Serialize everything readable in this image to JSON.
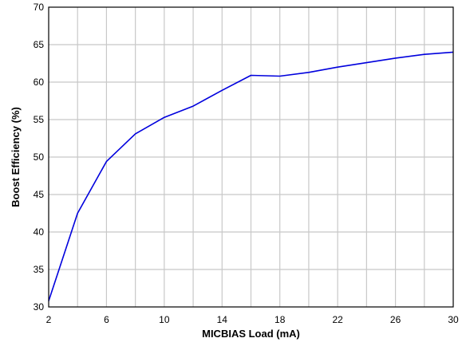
{
  "chart_data": {
    "type": "line",
    "title": "",
    "xlabel": "MICBIAS Load (mA)",
    "ylabel": "Boost Efficiency (%)",
    "xlim": [
      2,
      30
    ],
    "ylim": [
      30,
      70
    ],
    "xticks": [
      2,
      6,
      10,
      14,
      18,
      22,
      26,
      30
    ],
    "yticks": [
      30,
      35,
      40,
      45,
      50,
      55,
      60,
      65,
      70
    ],
    "x_minor_grid": [
      4,
      8,
      12,
      16,
      20,
      24,
      28
    ],
    "grid": true,
    "series": [
      {
        "color": "#0000dd",
        "x": [
          2,
          4,
          6,
          8,
          10,
          12,
          14,
          16,
          18,
          20,
          22,
          24,
          26,
          28,
          30
        ],
        "y": [
          30.8,
          42.5,
          49.4,
          53.1,
          55.3,
          56.8,
          58.9,
          60.9,
          60.8,
          61.3,
          62.0,
          62.6,
          63.2,
          63.7,
          64.0
        ]
      }
    ]
  }
}
